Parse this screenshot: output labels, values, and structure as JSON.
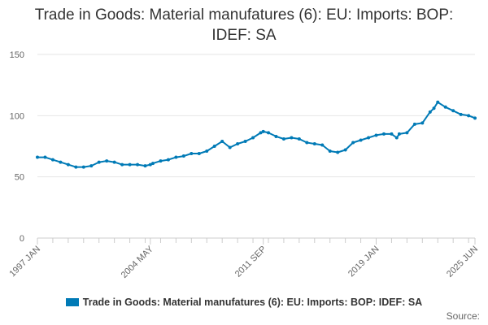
{
  "chart_data": {
    "type": "line",
    "title": "Trade in Goods: Material manufatures (6): EU: Imports: BOP: IDEF: SA",
    "xlabel": "",
    "ylabel": "",
    "ylim": [
      0,
      150
    ],
    "yticks": [
      0,
      50,
      100,
      150
    ],
    "xtick_labels": [
      "1997 JAN",
      "2004 MAY",
      "2011 SEP",
      "2019 JAN",
      "2025 JUN"
    ],
    "grid": true,
    "legend": "bottom-center",
    "colors": {
      "series": "#007ab6",
      "grid": "#e6e6e6",
      "axis": "#cccccc"
    },
    "series": [
      {
        "name": "Trade in Goods: Material manufatures (6): EU: Imports: BOP: IDEF: SA",
        "points": [
          [
            "1997 JAN",
            66
          ],
          [
            "1997 JUL",
            66
          ],
          [
            "1998 JAN",
            64
          ],
          [
            "1998 JUL",
            62
          ],
          [
            "1999 JAN",
            60
          ],
          [
            "1999 JUL",
            58
          ],
          [
            "2000 JAN",
            58
          ],
          [
            "2000 JUL",
            59
          ],
          [
            "2001 JAN",
            62
          ],
          [
            "2001 JUL",
            63
          ],
          [
            "2002 JAN",
            62
          ],
          [
            "2002 JUL",
            60
          ],
          [
            "2003 JAN",
            60
          ],
          [
            "2003 JUL",
            60
          ],
          [
            "2004 JAN",
            59
          ],
          [
            "2004 MAY",
            60
          ],
          [
            "2004 JUL",
            61
          ],
          [
            "2005 JAN",
            63
          ],
          [
            "2005 JUL",
            64
          ],
          [
            "2006 JAN",
            66
          ],
          [
            "2006 JUL",
            67
          ],
          [
            "2007 JAN",
            69
          ],
          [
            "2007 JUL",
            69
          ],
          [
            "2008 JAN",
            71
          ],
          [
            "2008 JUL",
            75
          ],
          [
            "2009 JAN",
            79
          ],
          [
            "2009 JUL",
            74
          ],
          [
            "2010 JAN",
            77
          ],
          [
            "2010 JUL",
            79
          ],
          [
            "2011 JAN",
            82
          ],
          [
            "2011 JUL",
            86
          ],
          [
            "2011 SEP",
            87
          ],
          [
            "2012 JAN",
            86
          ],
          [
            "2012 JUL",
            83
          ],
          [
            "2013 JAN",
            81
          ],
          [
            "2013 JUL",
            82
          ],
          [
            "2014 JAN",
            81
          ],
          [
            "2014 JUL",
            78
          ],
          [
            "2015 JAN",
            77
          ],
          [
            "2015 JUL",
            76
          ],
          [
            "2016 JAN",
            71
          ],
          [
            "2016 JUL",
            70
          ],
          [
            "2017 JAN",
            72
          ],
          [
            "2017 JUL",
            78
          ],
          [
            "2018 JAN",
            80
          ],
          [
            "2018 JUL",
            82
          ],
          [
            "2019 JAN",
            84
          ],
          [
            "2019 JUL",
            85
          ],
          [
            "2020 JAN",
            85
          ],
          [
            "2020 MAY",
            82
          ],
          [
            "2020 JUL",
            85
          ],
          [
            "2021 JAN",
            86
          ],
          [
            "2021 JUL",
            93
          ],
          [
            "2022 JAN",
            94
          ],
          [
            "2022 JUL",
            103
          ],
          [
            "2022 OCT",
            106
          ],
          [
            "2023 JAN",
            111
          ],
          [
            "2023 JUL",
            107
          ],
          [
            "2024 JAN",
            104
          ],
          [
            "2024 JUL",
            101
          ],
          [
            "2025 JAN",
            100
          ],
          [
            "2025 JUN",
            98
          ]
        ]
      }
    ]
  },
  "credits": "Source:"
}
